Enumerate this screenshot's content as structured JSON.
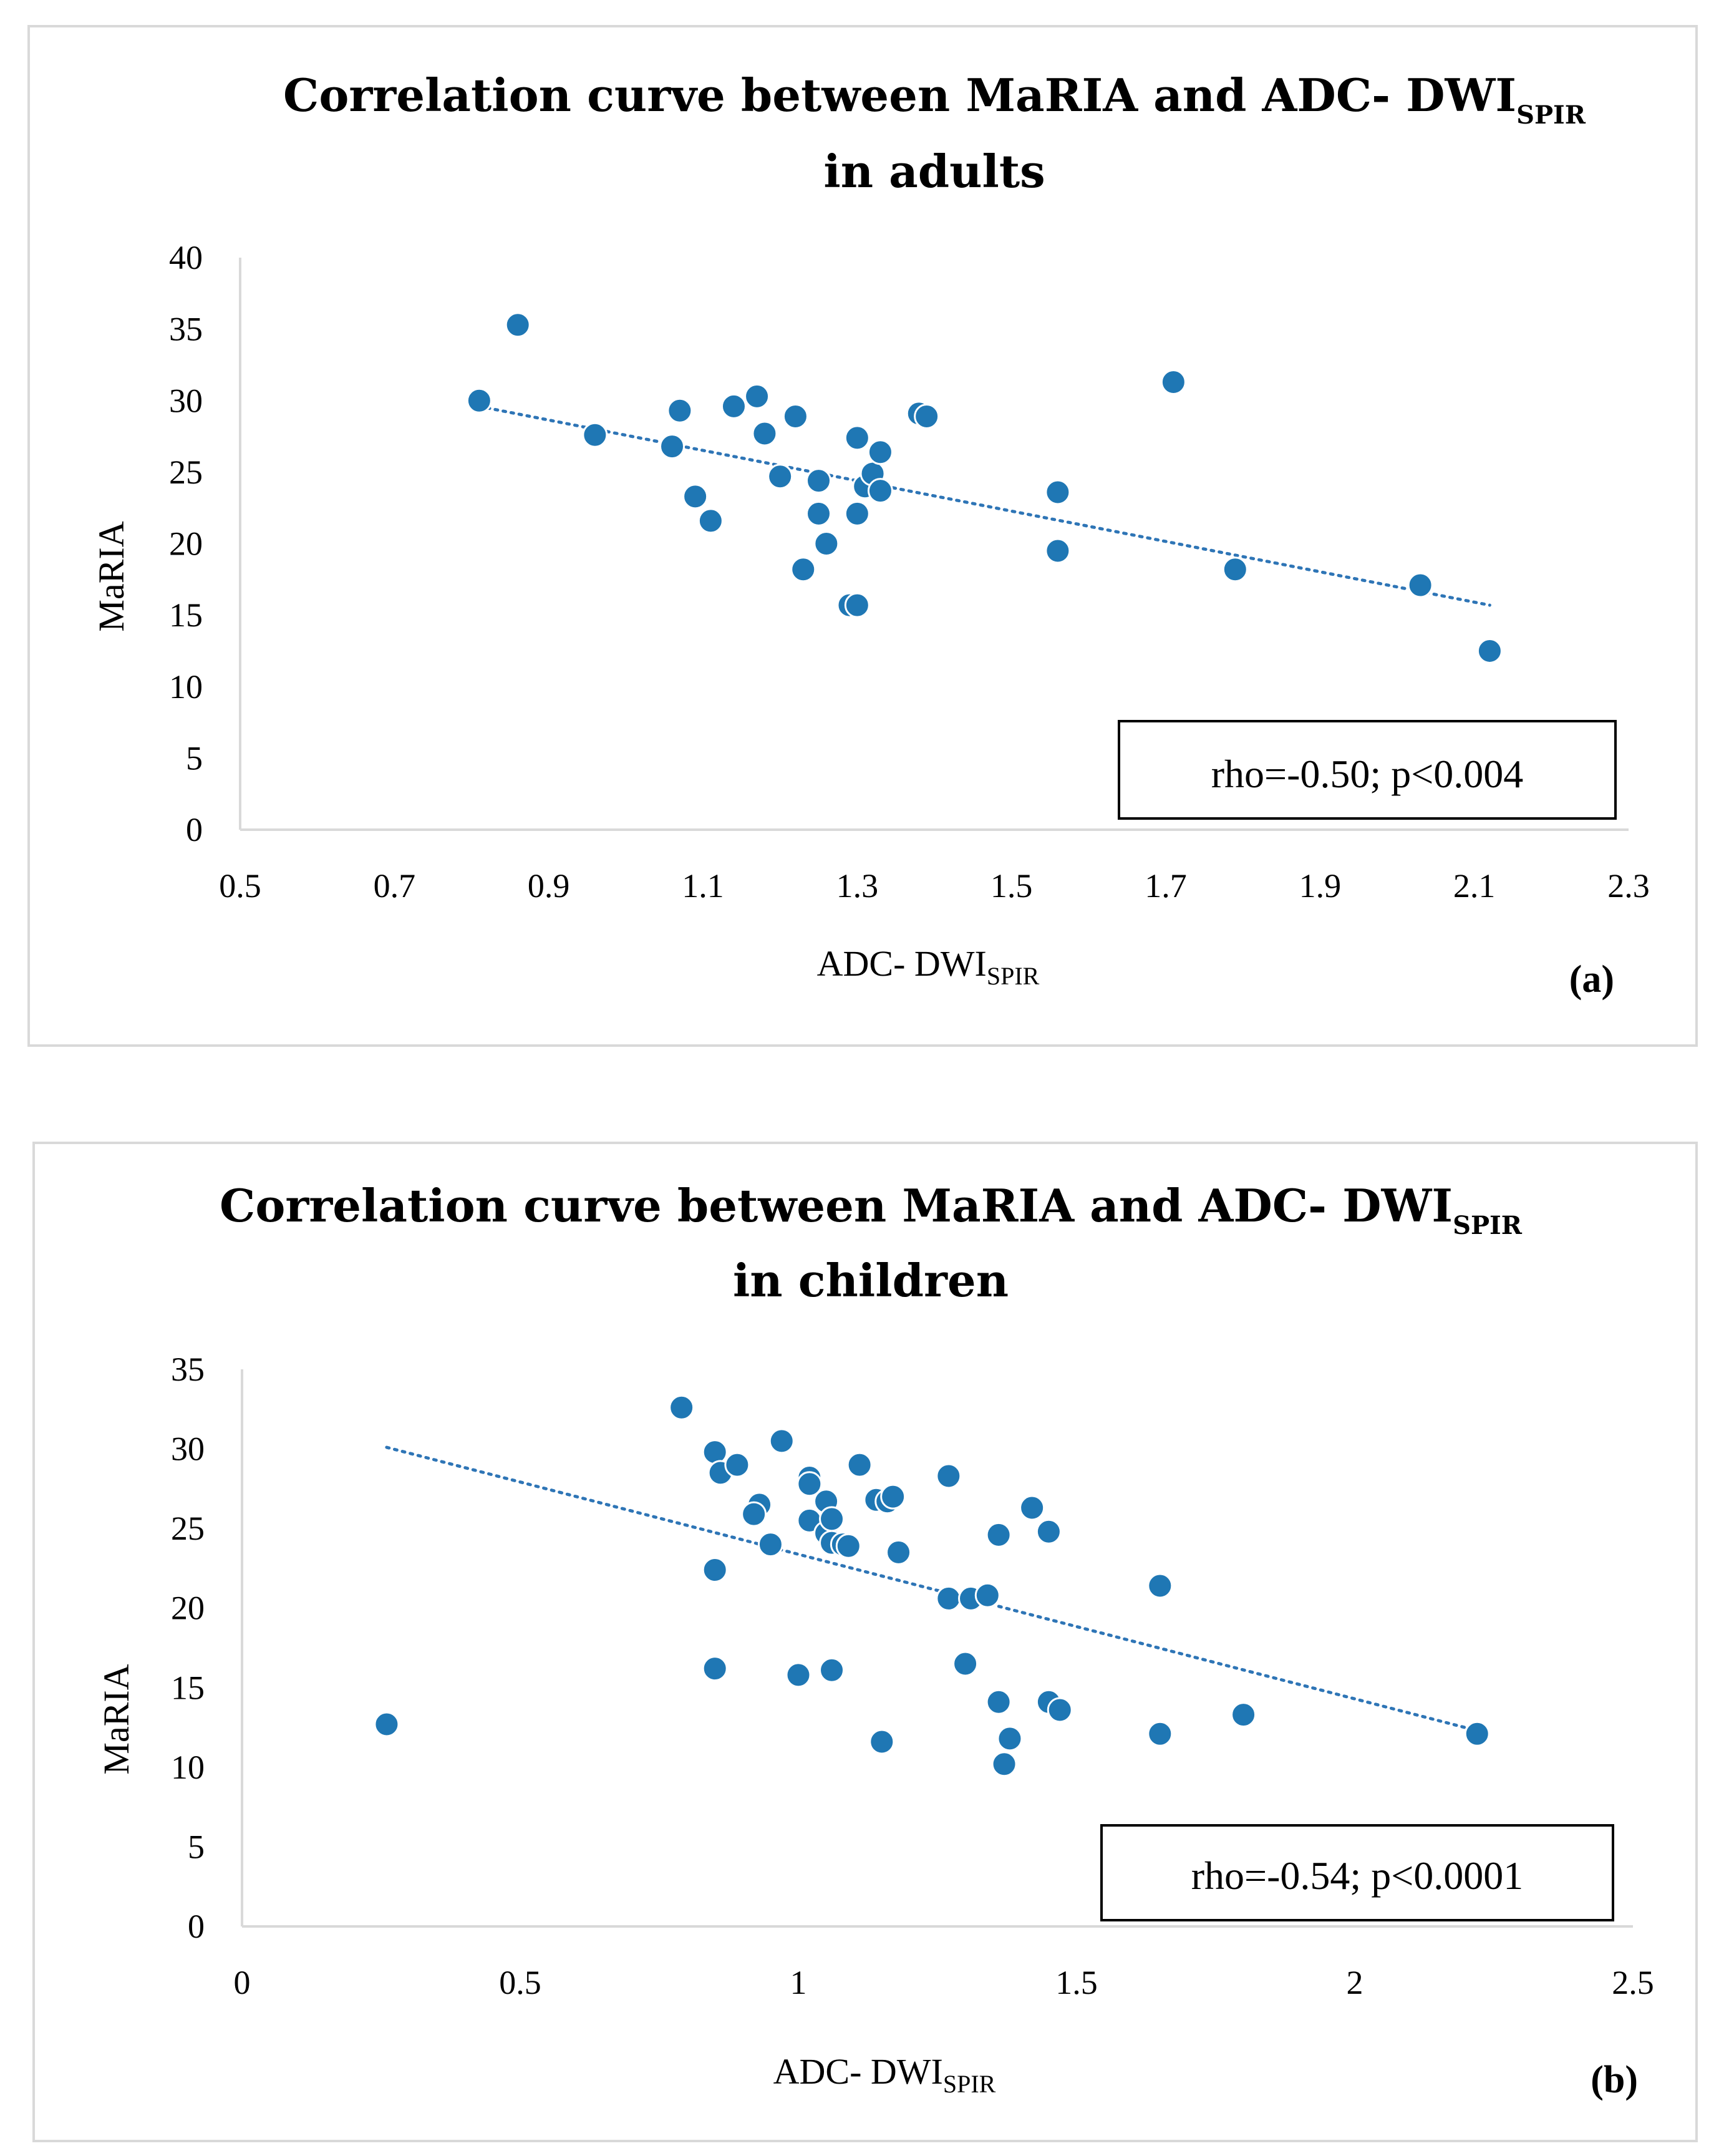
{
  "chart_data": [
    {
      "type": "scatter",
      "panel_label": "(a)",
      "title": "Correlation curve between MaRIA and ADC- DWI",
      "title_subscript": "SPIR",
      "title_line2": "in adults",
      "xlabel": "ADC- DWI",
      "xlabel_subscript": "SPIR",
      "ylabel": "MaRIA",
      "xlim": [
        0.5,
        2.3
      ],
      "ylim": [
        0,
        40
      ],
      "xticks": [
        "0.5",
        "0.7",
        "0.9",
        "1.1",
        "1.3",
        "1.5",
        "1.7",
        "1.9",
        "2.1",
        "2.3"
      ],
      "yticks": [
        "0",
        "5",
        "10",
        "15",
        "20",
        "25",
        "30",
        "35",
        "40"
      ],
      "annotation": "rho=-0.50; p<0.004",
      "marker_color": "#1f77b4",
      "trendline_color": "#2e75b6",
      "trendline": {
        "x": [
          0.81,
          2.12
        ],
        "y": [
          29.6,
          15.7
        ]
      },
      "points": [
        [
          0.81,
          30.0
        ],
        [
          0.86,
          35.3
        ],
        [
          0.96,
          27.6
        ],
        [
          1.06,
          26.8
        ],
        [
          1.07,
          29.3
        ],
        [
          1.09,
          23.3
        ],
        [
          1.11,
          21.6
        ],
        [
          1.14,
          29.6
        ],
        [
          1.17,
          30.3
        ],
        [
          1.18,
          27.7
        ],
        [
          1.2,
          24.7
        ],
        [
          1.22,
          28.9
        ],
        [
          1.23,
          18.2
        ],
        [
          1.25,
          24.4
        ],
        [
          1.25,
          22.1
        ],
        [
          1.26,
          20.0
        ],
        [
          1.29,
          15.7
        ],
        [
          1.3,
          15.7
        ],
        [
          1.3,
          27.4
        ],
        [
          1.3,
          22.1
        ],
        [
          1.31,
          24.0
        ],
        [
          1.32,
          24.9
        ],
        [
          1.33,
          23.7
        ],
        [
          1.33,
          26.4
        ],
        [
          1.38,
          29.1
        ],
        [
          1.39,
          28.9
        ],
        [
          1.56,
          23.6
        ],
        [
          1.56,
          19.5
        ],
        [
          1.71,
          31.3
        ],
        [
          1.79,
          18.2
        ],
        [
          2.03,
          17.1
        ],
        [
          2.12,
          12.5
        ]
      ]
    },
    {
      "type": "scatter",
      "panel_label": "(b)",
      "title": "Correlation curve between MaRIA and ADC- DWI",
      "title_subscript": "SPIR",
      "title_line2": "in children",
      "xlabel": "ADC- DWI",
      "xlabel_subscript": "SPIR",
      "ylabel": "MaRIA",
      "xlim": [
        0,
        2.5
      ],
      "ylim": [
        0,
        35
      ],
      "xticks": [
        "0",
        "0.5",
        "1",
        "1.5",
        "2",
        "2.5"
      ],
      "yticks": [
        "0",
        "5",
        "10",
        "15",
        "20",
        "25",
        "30",
        "35"
      ],
      "annotation": "rho=-0.54; p<0.0001",
      "marker_color": "#1f77b4",
      "trendline_color": "#2e75b6",
      "trendline": {
        "x": [
          0.26,
          2.22
        ],
        "y": [
          30.1,
          12.3
        ]
      },
      "points": [
        [
          0.26,
          12.7
        ],
        [
          0.79,
          32.6
        ],
        [
          0.85,
          29.8
        ],
        [
          0.86,
          28.5
        ],
        [
          0.89,
          29.0
        ],
        [
          0.85,
          22.4
        ],
        [
          0.85,
          16.2
        ],
        [
          0.93,
          26.5
        ],
        [
          0.92,
          25.9
        ],
        [
          0.95,
          24.0
        ],
        [
          0.97,
          30.5
        ],
        [
          1.0,
          15.8
        ],
        [
          1.02,
          28.2
        ],
        [
          1.02,
          27.8
        ],
        [
          1.02,
          25.5
        ],
        [
          1.05,
          24.7
        ],
        [
          1.05,
          26.7
        ],
        [
          1.06,
          25.6
        ],
        [
          1.06,
          24.1
        ],
        [
          1.08,
          24.0
        ],
        [
          1.09,
          23.9
        ],
        [
          1.06,
          16.1
        ],
        [
          1.11,
          29.0
        ],
        [
          1.14,
          26.8
        ],
        [
          1.16,
          26.7
        ],
        [
          1.17,
          27.0
        ],
        [
          1.18,
          23.5
        ],
        [
          1.15,
          11.6
        ],
        [
          1.27,
          28.3
        ],
        [
          1.27,
          20.6
        ],
        [
          1.31,
          20.6
        ],
        [
          1.3,
          16.5
        ],
        [
          1.34,
          20.8
        ],
        [
          1.36,
          24.6
        ],
        [
          1.36,
          14.1
        ],
        [
          1.38,
          11.8
        ],
        [
          1.37,
          10.2
        ],
        [
          1.42,
          26.3
        ],
        [
          1.45,
          24.8
        ],
        [
          1.45,
          14.1
        ],
        [
          1.47,
          13.6
        ],
        [
          1.65,
          21.4
        ],
        [
          1.65,
          12.1
        ],
        [
          1.8,
          13.3
        ],
        [
          2.22,
          12.1
        ]
      ]
    }
  ]
}
